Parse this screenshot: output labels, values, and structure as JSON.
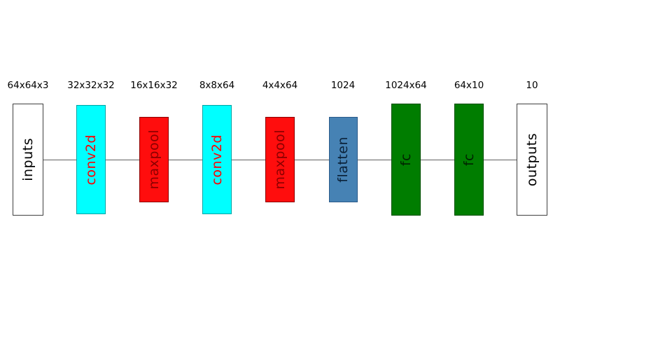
{
  "diagram": {
    "kind": "neural-network-architecture",
    "line_color": "#606060",
    "layers": [
      {
        "name": "inputs",
        "dim": "64x64x3",
        "type": "io"
      },
      {
        "name": "conv2d",
        "dim": "32x32x32",
        "type": "conv"
      },
      {
        "name": "maxpool",
        "dim": "16x16x32",
        "type": "pool"
      },
      {
        "name": "conv2d",
        "dim": "8x8x64",
        "type": "conv"
      },
      {
        "name": "maxpool",
        "dim": "4x4x64",
        "type": "pool"
      },
      {
        "name": "flatten",
        "dim": "1024",
        "type": "flatten"
      },
      {
        "name": "fc",
        "dim": "1024x64",
        "type": "fc"
      },
      {
        "name": "fc",
        "dim": "64x10",
        "type": "fc"
      },
      {
        "name": "outputs",
        "dim": "10",
        "type": "io"
      }
    ],
    "styles": {
      "io": {
        "fill": "#ffffff",
        "border": "#404040",
        "text": "#000000"
      },
      "conv": {
        "fill": "#00ffff",
        "border": "#00a3a3",
        "text": "#ff0000"
      },
      "pool": {
        "fill": "#ff0d0d",
        "border": "#8b0000",
        "text": "#8b0000"
      },
      "flatten": {
        "fill": "#4682b4",
        "border": "#2a5a8a",
        "text": "#0b2239"
      },
      "fc": {
        "fill": "#007d00",
        "border": "#004d00",
        "text": "#002200"
      }
    }
  }
}
